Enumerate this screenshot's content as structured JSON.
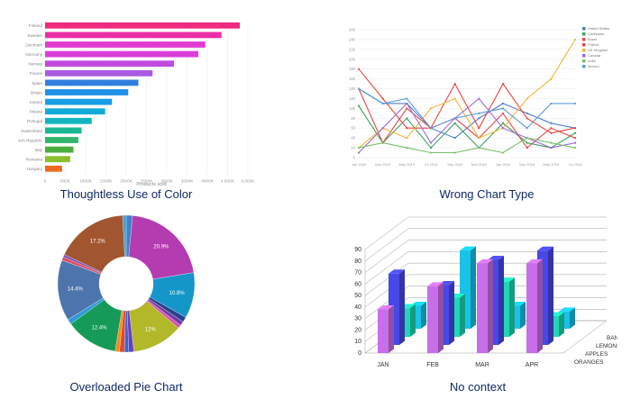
{
  "captions": {
    "top_left": "Thoughtless Use of Color",
    "top_right": "Wrong Chart Type",
    "bottom_left": "Overloaded Pie Chart",
    "bottom_right": "No context"
  },
  "chart_data": [
    {
      "type": "bar",
      "orientation": "horizontal",
      "categories": [
        "Finland",
        "Sweden",
        "Denmark",
        "Germany",
        "Norway",
        "France",
        "Spain",
        "Britain",
        "Ireland",
        "Poland",
        "Portugal",
        "Switzerland",
        "Czech Republic",
        "Italy",
        "Romania",
        "Hungary"
      ],
      "values": [
        4800,
        4350,
        3950,
        3780,
        3180,
        2650,
        2300,
        2050,
        1650,
        1480,
        1150,
        900,
        820,
        700,
        620,
        420
      ],
      "xlim": [
        0,
        5000
      ],
      "xticks": [
        "0",
        "500K",
        "1000K",
        "1500K",
        "2000K",
        "2500K",
        "3000K",
        "3500K",
        "4000K",
        "4,500K",
        "5,000K"
      ],
      "xlabel": "Products sold",
      "colors": [
        "#ef2a7f",
        "#ec2ea6",
        "#e23bd0",
        "#d93fd7",
        "#c04bde",
        "#a95ae2",
        "#2f7fe0",
        "#1f90e6",
        "#179ee6",
        "#12abd9",
        "#12b6bf",
        "#1ab894",
        "#2fb66a",
        "#4caf3d",
        "#8bbf2b",
        "#f06a1e"
      ],
      "grid": true
    },
    {
      "type": "line",
      "x": [
        "Jan 2015",
        "Mar 2015",
        "May 2015",
        "Jul 2015",
        "Sep 2015",
        "Nov 2015",
        "Jan 2016",
        "Mar 2016",
        "May 2016",
        "Jul 2016"
      ],
      "yticks": [
        "0",
        "20",
        "40",
        "60",
        "80",
        "100",
        "120",
        "140",
        "160",
        "180",
        "200",
        "220",
        "240",
        "260"
      ],
      "ylim": [
        0,
        260
      ],
      "legend_position": "top-right",
      "series": [
        {
          "name": "United States",
          "color": "#4c7ecf",
          "values": [
            140,
            110,
            110,
            60,
            40,
            80,
            110,
            90,
            70,
            60
          ]
        },
        {
          "name": "Caribbean",
          "color": "#3aa35b",
          "values": [
            105,
            30,
            80,
            20,
            70,
            20,
            70,
            30,
            20,
            50
          ]
        },
        {
          "name": "Brazil",
          "color": "#e04b4b",
          "values": [
            140,
            30,
            100,
            60,
            80,
            40,
            90,
            20,
            60,
            40
          ]
        },
        {
          "name": "France",
          "color": "#e8453c",
          "values": [
            180,
            120,
            60,
            60,
            150,
            60,
            150,
            80,
            50,
            60
          ]
        },
        {
          "name": "UK Kingdom",
          "color": "#f2b632",
          "values": [
            20,
            60,
            40,
            100,
            120,
            40,
            60,
            120,
            160,
            240
          ]
        },
        {
          "name": "Canada",
          "color": "#9a6ad6",
          "values": [
            10,
            60,
            110,
            30,
            80,
            120,
            60,
            40,
            20,
            30
          ]
        },
        {
          "name": "India",
          "color": "#7bbf6a",
          "values": [
            20,
            30,
            20,
            10,
            10,
            20,
            10,
            40,
            30,
            20
          ]
        },
        {
          "name": "Mexico",
          "color": "#5d9bd8",
          "values": [
            140,
            110,
            120,
            60,
            80,
            90,
            100,
            60,
            110,
            110
          ]
        }
      ],
      "grid": true
    },
    {
      "type": "pie",
      "donut": true,
      "labels": [
        "20.9%",
        "10.8%",
        "12%",
        "12.4%",
        "14.4%",
        "17.2%"
      ],
      "slices": [
        {
          "value": 1.5,
          "color": "#3f82c7"
        },
        {
          "value": 20.9,
          "color": "#b43bb0",
          "label": "20.9%"
        },
        {
          "value": 10.8,
          "color": "#1596c8",
          "label": "10.8%"
        },
        {
          "value": 1.2,
          "color": "#2c3f8f"
        },
        {
          "value": 1.0,
          "color": "#6d3fa3"
        },
        {
          "value": 0.8,
          "color": "#e14bb3"
        },
        {
          "value": 12,
          "color": "#b3b82a",
          "label": "12%"
        },
        {
          "value": 1.2,
          "color": "#6a3fbf"
        },
        {
          "value": 1.0,
          "color": "#2c6bd2"
        },
        {
          "value": 1.2,
          "color": "#e2492e"
        },
        {
          "value": 1.0,
          "color": "#f28c1a"
        },
        {
          "value": 12.4,
          "color": "#169a57",
          "label": "12.4%"
        },
        {
          "value": 1.2,
          "color": "#2e9bd6"
        },
        {
          "value": 14.4,
          "color": "#4e74ad",
          "label": "14.4%"
        },
        {
          "value": 0.8,
          "color": "#e14b5a"
        },
        {
          "value": 0.6,
          "color": "#7c4dc2"
        },
        {
          "value": 17.2,
          "color": "#a2562f",
          "label": "17.2%"
        },
        {
          "value": 0.8,
          "color": "#3aa0d6"
        }
      ]
    },
    {
      "type": "bar",
      "three_d": true,
      "categories": [
        "JAN",
        "FEB",
        "MAR",
        "APR"
      ],
      "depth_categories": [
        "ORANGES",
        "APPLES",
        "LEMONS",
        "BANANAS"
      ],
      "yticks": [
        "0",
        "10",
        "20",
        "30",
        "40",
        "50",
        "60",
        "70",
        "80",
        "90"
      ],
      "ylim": [
        0,
        90
      ],
      "series": [
        {
          "depth": "ORANGES",
          "color": "#c86ee8",
          "values": [
            38,
            58,
            78,
            78
          ]
        },
        {
          "depth": "APPLES",
          "color": "#4848e6",
          "values": [
            62,
            52,
            74,
            82
          ]
        },
        {
          "depth": "LEMONS",
          "color": "#1fd7b6",
          "values": [
            25,
            34,
            48,
            18
          ]
        },
        {
          "depth": "BANANAS",
          "color": "#17c3e8",
          "values": [
            20,
            68,
            20,
            15
          ]
        }
      ]
    }
  ]
}
